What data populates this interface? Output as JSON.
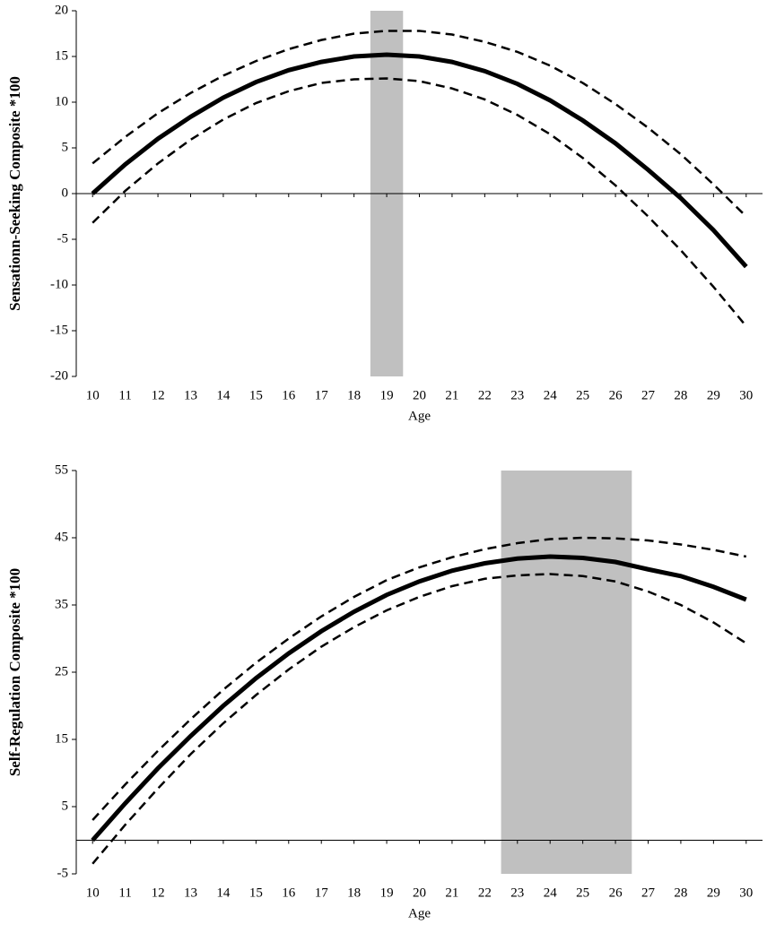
{
  "chart_data": [
    {
      "type": "line",
      "ylabel": "Sensationn-Seeking Composite *100",
      "xlabel": "Age",
      "x": [
        10,
        11,
        12,
        13,
        14,
        15,
        16,
        17,
        18,
        19,
        20,
        21,
        22,
        23,
        24,
        25,
        26,
        27,
        28,
        29,
        30
      ],
      "series": [
        {
          "color": "#000000",
          "style": "solid",
          "values": [
            0,
            3.2,
            6.0,
            8.4,
            10.5,
            12.2,
            13.5,
            14.4,
            15.0,
            15.2,
            15.0,
            14.4,
            13.4,
            12.0,
            10.2,
            8.0,
            5.5,
            2.6,
            -0.5,
            -4.0,
            -8.0
          ]
        },
        {
          "color": "#000000",
          "style": "dashed",
          "values": [
            3.3,
            6.2,
            8.8,
            11.0,
            12.9,
            14.5,
            15.8,
            16.8,
            17.5,
            17.8,
            17.8,
            17.4,
            16.6,
            15.5,
            14.0,
            12.1,
            9.8,
            7.2,
            4.3,
            1.0,
            -2.5
          ]
        },
        {
          "color": "#000000",
          "style": "dashed",
          "values": [
            -3.2,
            0.3,
            3.3,
            5.9,
            8.1,
            9.9,
            11.2,
            12.1,
            12.5,
            12.6,
            12.3,
            11.5,
            10.3,
            8.6,
            6.5,
            3.9,
            0.9,
            -2.5,
            -6.2,
            -10.2,
            -14.5
          ]
        }
      ],
      "band": [
        18.5,
        19.5
      ],
      "band_color": "#c0c0c0",
      "xlim": [
        9.5,
        30.5
      ],
      "xticks": [
        10,
        11,
        12,
        13,
        14,
        15,
        16,
        17,
        18,
        19,
        20,
        21,
        22,
        23,
        24,
        25,
        26,
        27,
        28,
        29,
        30
      ],
      "ylim": [
        -20,
        20
      ],
      "yticks": [
        -20,
        -15,
        -10,
        -5,
        0,
        5,
        10,
        15,
        20
      ]
    },
    {
      "type": "line",
      "ylabel": "Self-Regulation Composite *100",
      "xlabel": "Age",
      "x": [
        10,
        11,
        12,
        13,
        14,
        15,
        16,
        17,
        18,
        19,
        20,
        21,
        22,
        23,
        24,
        25,
        26,
        27,
        28,
        29,
        30
      ],
      "series": [
        {
          "color": "#000000",
          "style": "solid",
          "values": [
            0,
            5.5,
            10.7,
            15.5,
            20.0,
            24.1,
            27.8,
            31.1,
            34.0,
            36.5,
            38.5,
            40.1,
            41.2,
            41.9,
            42.2,
            42.0,
            41.4,
            40.3,
            39.3,
            37.7,
            35.8
          ]
        },
        {
          "color": "#000000",
          "style": "dashed",
          "values": [
            3.0,
            8.3,
            13.3,
            18.0,
            22.4,
            26.4,
            30.0,
            33.3,
            36.2,
            38.7,
            40.6,
            42.1,
            43.3,
            44.2,
            44.8,
            45.0,
            44.9,
            44.6,
            44.0,
            43.2,
            42.2
          ]
        },
        {
          "color": "#000000",
          "style": "dashed",
          "values": [
            -3.5,
            2.3,
            7.7,
            12.8,
            17.4,
            21.6,
            25.4,
            28.8,
            31.7,
            34.2,
            36.2,
            37.8,
            38.9,
            39.4,
            39.6,
            39.3,
            38.5,
            37.0,
            35.0,
            32.4,
            29.3
          ]
        }
      ],
      "band": [
        22.5,
        26.5
      ],
      "band_color": "#c0c0c0",
      "xlim": [
        9.5,
        30.5
      ],
      "xticks": [
        10,
        11,
        12,
        13,
        14,
        15,
        16,
        17,
        18,
        19,
        20,
        21,
        22,
        23,
        24,
        25,
        26,
        27,
        28,
        29,
        30
      ],
      "ylim": [
        -5,
        55
      ],
      "yticks": [
        -5,
        5,
        15,
        25,
        35,
        45,
        55
      ]
    }
  ]
}
